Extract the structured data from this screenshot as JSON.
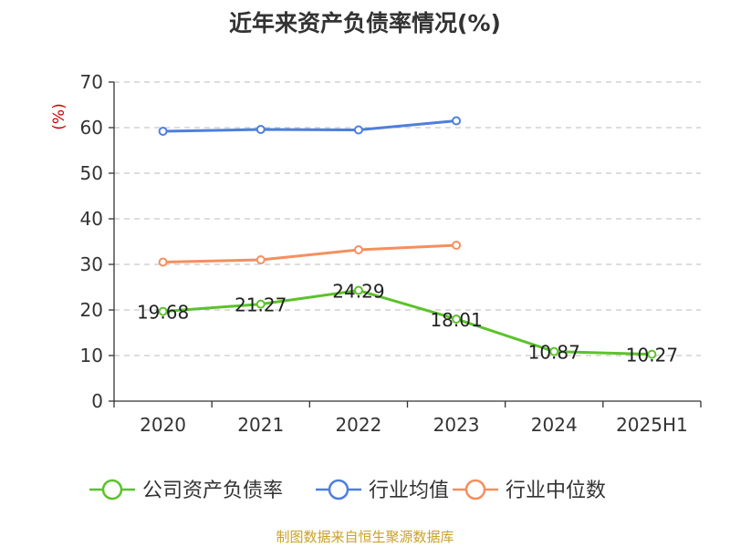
{
  "chart_data": {
    "type": "line",
    "title": "近年来资产负债率情况(%)",
    "unit": "(%)",
    "categories": [
      "2020",
      "2021",
      "2022",
      "2023",
      "2024",
      "2025H1"
    ],
    "ylim": [
      0,
      70
    ],
    "yticks": [
      0,
      10,
      20,
      30,
      40,
      50,
      60,
      70
    ],
    "grid": true,
    "legend_position": "bottom",
    "series": [
      {
        "name": "公司资产负债率",
        "color": "#5cc22a",
        "values": [
          19.68,
          21.27,
          24.29,
          18.01,
          10.87,
          10.27
        ],
        "labels": [
          "19.68",
          "21.27",
          "24.29",
          "18.01",
          "10.87",
          "10.27"
        ]
      },
      {
        "name": "行业均值",
        "color": "#4e7fdc",
        "values": [
          59.2,
          59.6,
          59.5,
          61.5,
          null,
          null
        ]
      },
      {
        "name": "行业中位数",
        "color": "#f58f5e",
        "values": [
          30.5,
          31.0,
          33.2,
          34.2,
          null,
          null
        ]
      }
    ]
  },
  "source": "制图数据来自恒生聚源数据库"
}
